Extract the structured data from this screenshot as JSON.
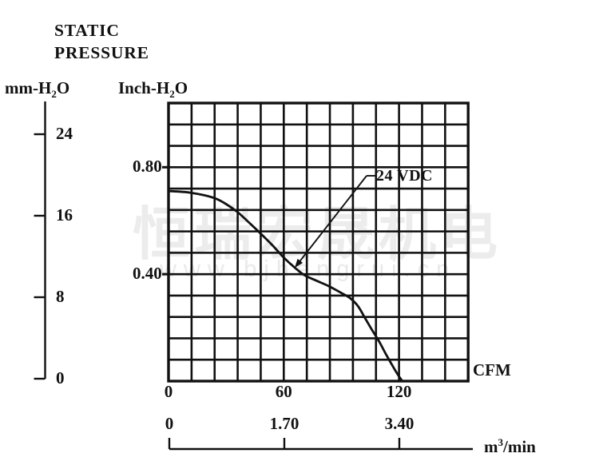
{
  "page": {
    "background": "#ffffff",
    "ink": "#111111"
  },
  "title": {
    "line1": "STATIC",
    "line2": "PRESSURE"
  },
  "watermark": {
    "cjk_text": "恒瑞宏晟机电",
    "url_text": "www.bjhengrui.cn",
    "cjk_color": "#ececec",
    "url_color": "#e9e9e9"
  },
  "left_axis": {
    "label": {
      "pre": "mm-H",
      "sub": "2",
      "post": "O"
    },
    "unit": "mm-H2O",
    "ticks": [
      {
        "label": "24",
        "value": 24
      },
      {
        "label": "16",
        "value": 16
      },
      {
        "label": "8",
        "value": 8
      },
      {
        "label": "0",
        "value": 0
      }
    ],
    "max_value": 24
  },
  "chart_data": {
    "type": "line",
    "title": "Static pressure vs airflow performance curve",
    "grid": {
      "columns": 13,
      "rows": 13,
      "line_color": "#111111"
    },
    "x_axis": {
      "label": "CFM",
      "range": [
        0,
        156
      ],
      "grid_step": 12,
      "tick_labels": [
        {
          "label": "0",
          "value": 0
        },
        {
          "label": "60",
          "value": 60
        },
        {
          "label": "120",
          "value": 120
        }
      ]
    },
    "y_axis": {
      "label": {
        "pre": "Inch-H",
        "sub": "2",
        "post": "O"
      },
      "unit": "Inch-H2O",
      "range": [
        0,
        1.04
      ],
      "grid_step": 0.08,
      "tick_labels": [
        {
          "label": "0.80",
          "value": 0.8
        },
        {
          "label": "0.40",
          "value": 0.4
        }
      ]
    },
    "secondary_x_axis": {
      "label": {
        "pre": "m",
        "sup": "3",
        "post": "/min"
      },
      "unit": "m3/min",
      "tick_labels": [
        {
          "label": "0",
          "value": 0
        },
        {
          "label": "1.70",
          "value": 1.7
        },
        {
          "label": "3.40",
          "value": 3.4
        }
      ],
      "max_value": 3.4
    },
    "series": [
      {
        "name": "24 VDC",
        "color": "#111111",
        "points_cfm_inch": [
          [
            0,
            0.711
          ],
          [
            11.2,
            0.705
          ],
          [
            22.9,
            0.687
          ],
          [
            29.1,
            0.666
          ],
          [
            35.8,
            0.633
          ],
          [
            41.6,
            0.595
          ],
          [
            47.8,
            0.553
          ],
          [
            54.1,
            0.508
          ],
          [
            59.9,
            0.463
          ],
          [
            65.3,
            0.427
          ],
          [
            70.7,
            0.397
          ],
          [
            76.9,
            0.376
          ],
          [
            83.2,
            0.356
          ],
          [
            89.4,
            0.332
          ],
          [
            94.4,
            0.311
          ],
          [
            98.6,
            0.281
          ],
          [
            102.3,
            0.236
          ],
          [
            106.0,
            0.191
          ],
          [
            109.8,
            0.146
          ],
          [
            113.1,
            0.102
          ],
          [
            116.4,
            0.06
          ],
          [
            119.4,
            0.024
          ],
          [
            121.4,
            0.003
          ]
        ]
      }
    ],
    "annotation": {
      "label": "24 VDC",
      "points_to_cfm_inch": [
        65.3,
        0.427
      ]
    }
  }
}
